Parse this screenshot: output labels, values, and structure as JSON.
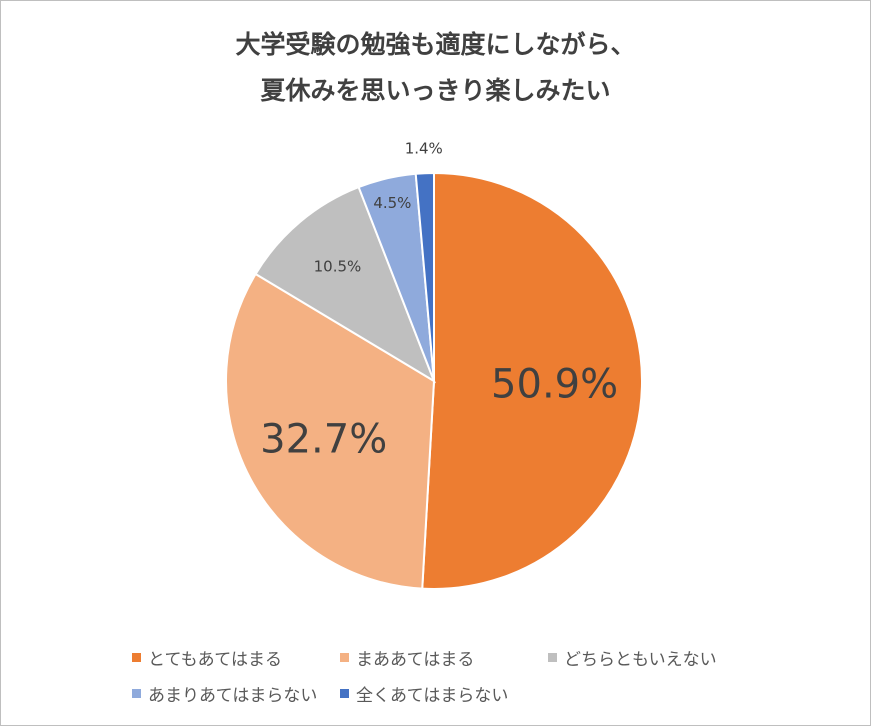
{
  "title": {
    "line1": "大学受験の勉強も適度にしながら、",
    "line2": "夏休みを思いっきり楽しみたい"
  },
  "chart_data": {
    "type": "pie",
    "start_angle_deg": 0,
    "direction": "clockwise",
    "slices": [
      {
        "label": "とてもあてはまる",
        "value": 50.9,
        "display": "50.9%",
        "color": "#ED7D31"
      },
      {
        "label": "まああてはまる",
        "value": 32.7,
        "display": "32.7%",
        "color": "#F4B183"
      },
      {
        "label": "どちらともいえない",
        "value": 10.5,
        "display": "10.5%",
        "color": "#BFBFBF"
      },
      {
        "label": "あまりあてはまらない",
        "value": 4.5,
        "display": "4.5%",
        "color": "#8FAADC"
      },
      {
        "label": "全くあてはまらない",
        "value": 1.4,
        "display": "1.4%",
        "color": "#4472C4"
      }
    ],
    "legend_position": "bottom"
  }
}
